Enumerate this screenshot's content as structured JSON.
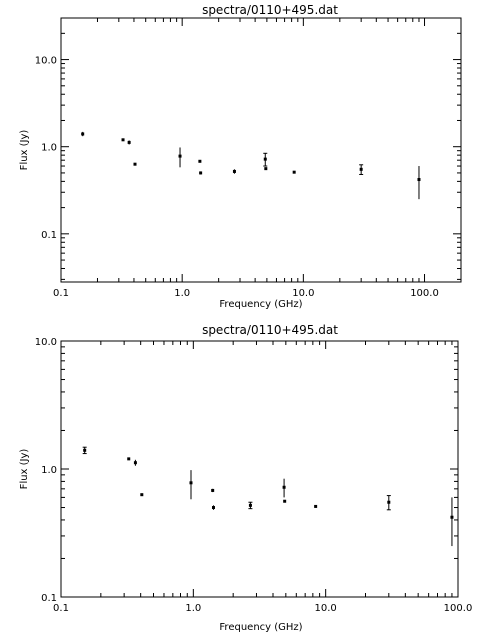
{
  "chart_data": [
    {
      "type": "scatter",
      "title": "spectra/0110+495.dat",
      "xlabel": "Frequency (GHz)",
      "ylabel": "Flux (Jy)",
      "xscale": "log",
      "yscale": "log",
      "xlim": [
        0.1,
        200
      ],
      "ylim": [
        0.028,
        30
      ],
      "grid": false,
      "xticks": [
        0.1,
        1.0,
        10.0,
        100.0
      ],
      "xtick_labels": [
        "0.1",
        "1.0",
        "10.0",
        "100.0"
      ],
      "yticks": [
        0.1,
        1.0,
        10.0
      ],
      "ytick_labels": [
        "0.1",
        "1.0",
        "10.0"
      ],
      "points": [
        {
          "x": 0.151,
          "y": 1.4,
          "ylo": 1.32,
          "yhi": 1.48
        },
        {
          "x": 0.325,
          "y": 1.2,
          "ylo": 1.18,
          "yhi": 1.22
        },
        {
          "x": 0.365,
          "y": 1.12,
          "ylo": 1.06,
          "yhi": 1.18
        },
        {
          "x": 0.408,
          "y": 0.63,
          "ylo": 0.62,
          "yhi": 0.64
        },
        {
          "x": 0.96,
          "y": 0.78,
          "ylo": 0.58,
          "yhi": 0.98
        },
        {
          "x": 1.4,
          "y": 0.68,
          "ylo": 0.66,
          "yhi": 0.7
        },
        {
          "x": 1.42,
          "y": 0.5,
          "ylo": 0.48,
          "yhi": 0.52
        },
        {
          "x": 2.7,
          "y": 0.52,
          "ylo": 0.49,
          "yhi": 0.55
        },
        {
          "x": 4.85,
          "y": 0.72,
          "ylo": 0.6,
          "yhi": 0.84
        },
        {
          "x": 4.9,
          "y": 0.56,
          "ylo": 0.55,
          "yhi": 0.57
        },
        {
          "x": 8.4,
          "y": 0.51,
          "ylo": 0.5,
          "yhi": 0.52
        },
        {
          "x": 30.0,
          "y": 0.55,
          "ylo": 0.48,
          "yhi": 0.62
        },
        {
          "x": 90.0,
          "y": 0.42,
          "ylo": 0.25,
          "yhi": 0.6
        }
      ]
    },
    {
      "type": "scatter",
      "title": "spectra/0110+495.dat",
      "xlabel": "Frequency (GHz)",
      "ylabel": "Flux (Jy)",
      "xscale": "log",
      "yscale": "log",
      "xlim": [
        0.1,
        100
      ],
      "ylim": [
        0.1,
        10
      ],
      "grid": false,
      "xticks": [
        0.1,
        1.0,
        10.0,
        100.0
      ],
      "xtick_labels": [
        "0.1",
        "1.0",
        "10.0",
        "100.0"
      ],
      "yticks": [
        0.1,
        1.0,
        10.0
      ],
      "ytick_labels": [
        "0.1",
        "1.0",
        "10.0"
      ],
      "points": [
        {
          "x": 0.151,
          "y": 1.4,
          "ylo": 1.32,
          "yhi": 1.48
        },
        {
          "x": 0.325,
          "y": 1.2,
          "ylo": 1.18,
          "yhi": 1.22
        },
        {
          "x": 0.365,
          "y": 1.12,
          "ylo": 1.06,
          "yhi": 1.18
        },
        {
          "x": 0.408,
          "y": 0.63,
          "ylo": 0.62,
          "yhi": 0.64
        },
        {
          "x": 0.96,
          "y": 0.78,
          "ylo": 0.58,
          "yhi": 0.98
        },
        {
          "x": 1.4,
          "y": 0.68,
          "ylo": 0.66,
          "yhi": 0.7
        },
        {
          "x": 1.42,
          "y": 0.5,
          "ylo": 0.48,
          "yhi": 0.52
        },
        {
          "x": 2.7,
          "y": 0.52,
          "ylo": 0.49,
          "yhi": 0.55
        },
        {
          "x": 4.85,
          "y": 0.72,
          "ylo": 0.6,
          "yhi": 0.84
        },
        {
          "x": 4.9,
          "y": 0.56,
          "ylo": 0.55,
          "yhi": 0.57
        },
        {
          "x": 8.4,
          "y": 0.51,
          "ylo": 0.5,
          "yhi": 0.52
        },
        {
          "x": 30.0,
          "y": 0.55,
          "ylo": 0.48,
          "yhi": 0.62
        },
        {
          "x": 90.0,
          "y": 0.42,
          "ylo": 0.25,
          "yhi": 0.6
        }
      ]
    }
  ]
}
